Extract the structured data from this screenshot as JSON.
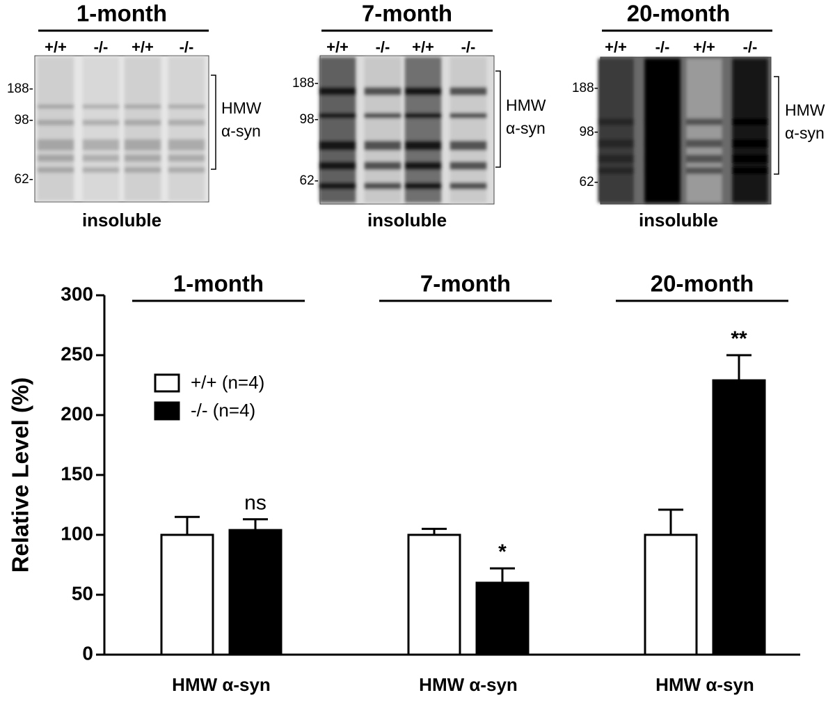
{
  "blots": [
    {
      "title": "1-month",
      "lanes": [
        "+/+",
        "-/-",
        "+/+",
        "-/-"
      ],
      "markers": [
        "188-",
        "98-",
        "62-"
      ],
      "bracket_label": [
        "HMW",
        "α-syn"
      ],
      "caption": "insoluble"
    },
    {
      "title": "7-month",
      "lanes": [
        "+/+",
        "-/-",
        "+/+",
        "-/-"
      ],
      "markers": [
        "188-",
        "98-",
        "62-"
      ],
      "bracket_label": [
        "HMW",
        "α-syn"
      ],
      "caption": "insoluble"
    },
    {
      "title": "20-month",
      "lanes": [
        "+/+",
        "-/-",
        "+/+",
        "-/-"
      ],
      "markers": [
        "188-",
        "98-",
        "62-"
      ],
      "bracket_label": [
        "HMW",
        "α-syn"
      ],
      "caption": "insoluble"
    }
  ],
  "chart_data": {
    "type": "bar",
    "ylabel": "Relative Level (%)",
    "groups": [
      "1-month",
      "7-month",
      "20-month"
    ],
    "categories": [
      "HMW α-syn",
      "HMW α-syn",
      "HMW α-syn"
    ],
    "series": [
      {
        "name": "+/+ (n=4)",
        "color": "#ffffff",
        "values": [
          100,
          100,
          100
        ],
        "errors": [
          15,
          5,
          21
        ]
      },
      {
        "name": "-/- (n=4)",
        "color": "#000000",
        "values": [
          104,
          60,
          229
        ],
        "errors": [
          9,
          12,
          21
        ],
        "significance": [
          "ns",
          "*",
          "**"
        ]
      }
    ],
    "ylim": [
      0,
      300
    ],
    "yticks": [
      0,
      50,
      100,
      150,
      200,
      250,
      300
    ]
  }
}
